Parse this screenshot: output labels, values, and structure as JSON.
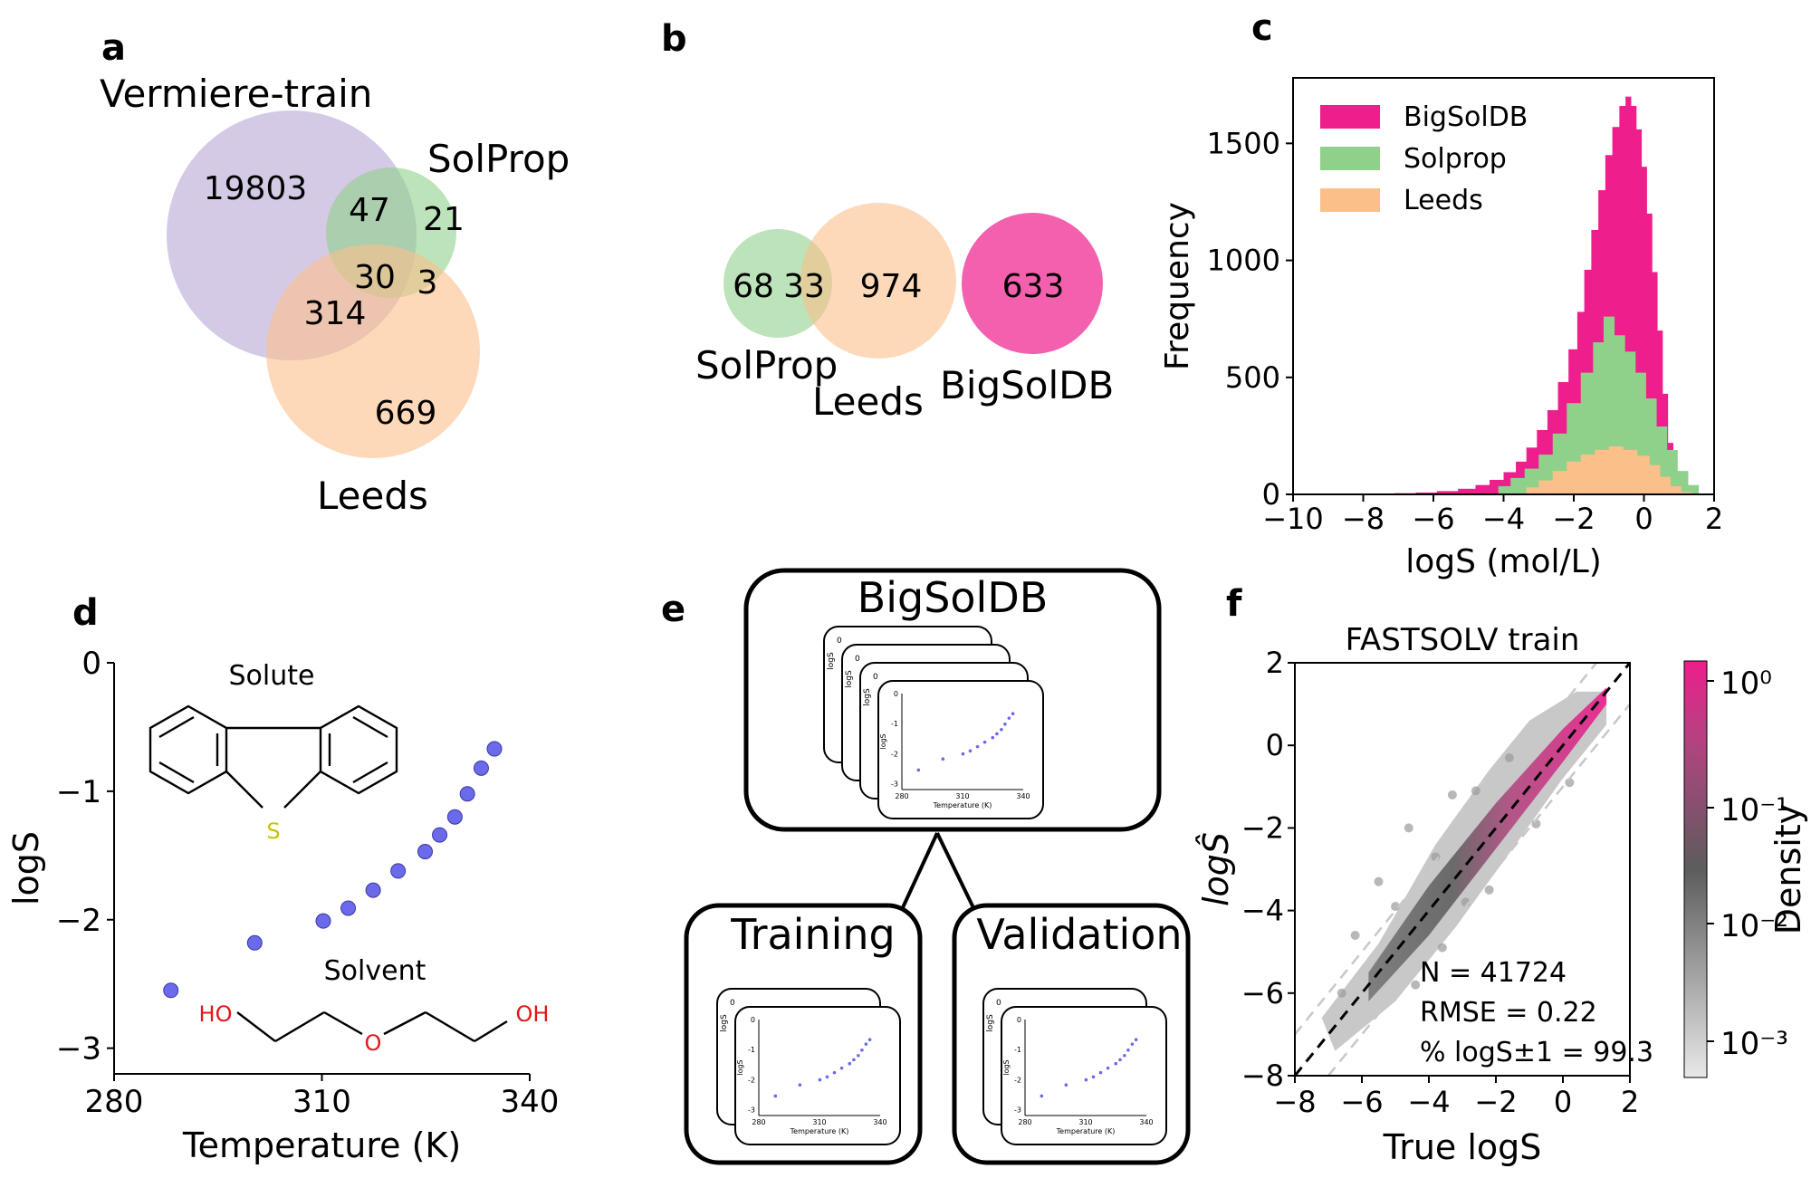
{
  "panels": {
    "a": {
      "letter": "a",
      "sets": [
        "Vermiere-train",
        "SolProp",
        "Leeds"
      ],
      "regions": {
        "vermiere_only": "19803",
        "vermiere_solprop": "47",
        "solprop_only": "21",
        "all_three": "30",
        "solprop_leeds": "3",
        "vermiere_leeds": "314",
        "leeds_only": "669"
      }
    },
    "b": {
      "letter": "b",
      "sets": [
        "SolProp",
        "Leeds",
        "BigSolDB"
      ],
      "regions": {
        "solprop_only": "68",
        "solprop_leeds": "33",
        "leeds_only": "974",
        "bigsoldb": "633"
      }
    },
    "c": {
      "letter": "c"
    },
    "d": {
      "letter": "d",
      "solute_label": "Solute",
      "solvent_label": "Solvent",
      "atoms": {
        "sulfur": "S",
        "oxygen": "O",
        "ho": "HO",
        "oh": "OH"
      }
    },
    "e": {
      "letter": "e",
      "top_box": "BigSolDB",
      "left_box": "Training",
      "right_box": "Validation",
      "mini_plot": {
        "ylabel": "logS",
        "xlabel": "Temperature (K)",
        "yticks": [
          "0",
          "-1",
          "-2",
          "-3"
        ],
        "xticks": [
          "280",
          "310",
          "340"
        ]
      }
    },
    "f": {
      "letter": "f"
    }
  },
  "colors": {
    "vermiere": "#b9a7d3",
    "solprop": "#8fd18b",
    "leeds": "#fbbf8a",
    "bigsoldb": "#ee1e8c",
    "points_d": "#6a6aea",
    "density_high": "#ee1e8c"
  },
  "chart_data": [
    {
      "type": "bar",
      "id": "c",
      "stacked": true,
      "xlabel": "logS (mol/L)",
      "ylabel": "Frequency",
      "xlim": [
        -10,
        2
      ],
      "ylim": [
        0,
        1780
      ],
      "xticks": [
        "−10",
        "−8",
        "−6",
        "−4",
        "−2",
        "0",
        "2"
      ],
      "yticks": [
        "0",
        "500",
        "1000",
        "1500"
      ],
      "legend_position": "top-left",
      "series": [
        {
          "name": "BigSolDB",
          "color": "#ee1e8c",
          "bins": [
            [
              -9.2,
              3
            ],
            [
              -8.6,
              2
            ],
            [
              -8.0,
              2
            ],
            [
              -7.4,
              3
            ],
            [
              -6.8,
              5
            ],
            [
              -6.2,
              8
            ],
            [
              -5.6,
              14
            ],
            [
              -5.0,
              24
            ],
            [
              -4.6,
              40
            ],
            [
              -4.2,
              62
            ],
            [
              -3.8,
              95
            ],
            [
              -3.5,
              140
            ],
            [
              -3.2,
              200
            ],
            [
              -2.9,
              275
            ],
            [
              -2.6,
              360
            ],
            [
              -2.3,
              480
            ],
            [
              -2.0,
              620
            ],
            [
              -1.8,
              780
            ],
            [
              -1.6,
              960
            ],
            [
              -1.4,
              1130
            ],
            [
              -1.2,
              1300
            ],
            [
              -1.0,
              1450
            ],
            [
              -0.8,
              1570
            ],
            [
              -0.6,
              1660
            ],
            [
              -0.45,
              1700
            ],
            [
              -0.3,
              1660
            ],
            [
              -0.15,
              1560
            ],
            [
              0.0,
              1400
            ],
            [
              0.15,
              1200
            ],
            [
              0.3,
              950
            ],
            [
              0.45,
              700
            ],
            [
              0.6,
              430
            ],
            [
              0.75,
              220
            ],
            [
              0.9,
              90
            ],
            [
              1.1,
              30
            ],
            [
              1.4,
              8
            ]
          ]
        },
        {
          "name": "Solprop",
          "color": "#8fd18b",
          "bins": [
            [
              -4.0,
              35
            ],
            [
              -3.6,
              70
            ],
            [
              -3.2,
              110
            ],
            [
              -2.8,
              170
            ],
            [
              -2.4,
              260
            ],
            [
              -2.0,
              390
            ],
            [
              -1.6,
              520
            ],
            [
              -1.3,
              650
            ],
            [
              -1.0,
              760
            ],
            [
              -0.7,
              680
            ],
            [
              -0.4,
              610
            ],
            [
              -0.1,
              520
            ],
            [
              0.2,
              410
            ],
            [
              0.5,
              290
            ],
            [
              0.8,
              190
            ],
            [
              1.1,
              100
            ],
            [
              1.4,
              40
            ]
          ]
        },
        {
          "name": "Leeds",
          "color": "#fbbf8a",
          "bins": [
            [
              -3.2,
              30
            ],
            [
              -2.8,
              60
            ],
            [
              -2.4,
              100
            ],
            [
              -2.0,
              140
            ],
            [
              -1.6,
              170
            ],
            [
              -1.2,
              190
            ],
            [
              -0.8,
              205
            ],
            [
              -0.4,
              190
            ],
            [
              0.0,
              165
            ],
            [
              0.3,
              125
            ],
            [
              0.6,
              75
            ],
            [
              0.9,
              35
            ],
            [
              1.2,
              10
            ]
          ]
        }
      ]
    },
    {
      "type": "scatter",
      "id": "d",
      "xlabel": "Temperature (K)",
      "ylabel": "logS",
      "xlim": [
        280,
        340
      ],
      "ylim": [
        -3.2,
        0
      ],
      "xticks": [
        "280",
        "310",
        "340"
      ],
      "yticks": [
        "0",
        "−1",
        "−2",
        "−3"
      ],
      "x": [
        288.2,
        300.3,
        310.2,
        313.8,
        317.4,
        321.0,
        324.9,
        327.0,
        329.2,
        331.0,
        333.0,
        334.9
      ],
      "y": [
        -2.55,
        -2.18,
        -2.01,
        -1.91,
        -1.77,
        -1.62,
        -1.47,
        -1.34,
        -1.2,
        -1.02,
        -0.82,
        -0.67
      ]
    },
    {
      "type": "scatter",
      "id": "f",
      "title": "FASTSOLV train",
      "xlabel": "True logS",
      "ylabel": "logŜ",
      "xlim": [
        -8,
        2
      ],
      "ylim": [
        -8,
        2
      ],
      "xticks": [
        "−8",
        "−6",
        "−4",
        "−2",
        "0",
        "2"
      ],
      "yticks": [
        "−8",
        "−6",
        "−4",
        "−2",
        "0",
        "2"
      ],
      "colorbar_label": "Density",
      "colorbar_ticks": [
        "10⁰",
        "10⁻¹",
        "10⁻²",
        "10⁻³"
      ],
      "colorbar_scale": "log",
      "stats": [
        "N = 41724",
        "RMSE = 0.22",
        "% logS±1 = 99.3"
      ]
    }
  ]
}
